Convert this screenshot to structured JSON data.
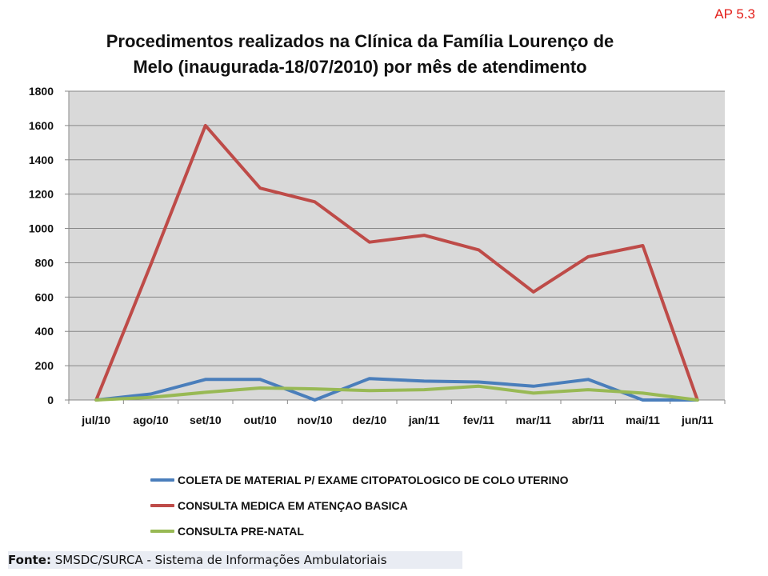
{
  "corner_tag": "AP 5.3",
  "footer": {
    "label": "Fonte:",
    "text": " SMSDC/SURCA - Sistema de Informações Ambulatoriais"
  },
  "colors": {
    "plot_bg": "#d9d9d9",
    "grid": "#888888"
  },
  "chart_data": {
    "type": "line",
    "title": [
      "Procedimentos realizados na Clínica da Família Lourenço de",
      "Melo (inaugurada-18/07/2010) por mês de atendimento"
    ],
    "xlabel": "",
    "ylabel": "",
    "categories": [
      "jul/10",
      "ago/10",
      "set/10",
      "out/10",
      "nov/10",
      "dez/10",
      "jan/11",
      "fev/11",
      "mar/11",
      "abr/11",
      "mai/11",
      "jun/11"
    ],
    "ylim": [
      0,
      1800
    ],
    "yticks": [
      0,
      200,
      400,
      600,
      800,
      1000,
      1200,
      1400,
      1600,
      1800
    ],
    "grid": true,
    "legend": "bottom",
    "series": [
      {
        "name": "COLETA DE MATERIAL P/ EXAME CITOPATOLOGICO DE COLO UTERINO",
        "color": "#4a7ebb",
        "values": [
          0,
          35,
          120,
          120,
          0,
          125,
          110,
          105,
          80,
          120,
          0,
          0
        ]
      },
      {
        "name": "CONSULTA MEDICA EM ATENÇAO BASICA",
        "color": "#be4b48",
        "values": [
          0,
          790,
          1600,
          1235,
          1155,
          920,
          960,
          875,
          630,
          835,
          900,
          0
        ]
      },
      {
        "name": "CONSULTA PRE-NATAL",
        "color": "#98b954",
        "values": [
          0,
          15,
          45,
          70,
          65,
          55,
          60,
          80,
          40,
          60,
          40,
          0
        ]
      }
    ]
  }
}
